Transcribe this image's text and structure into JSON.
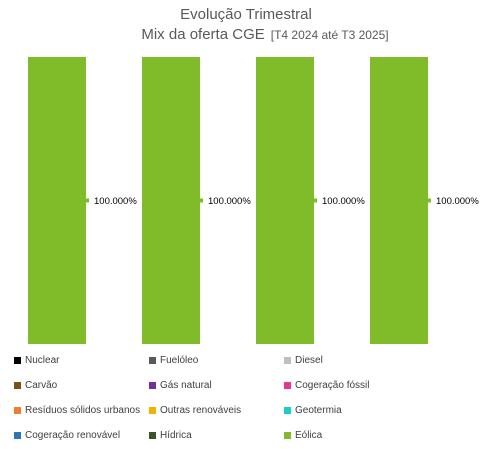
{
  "chart_data": {
    "type": "bar",
    "stacked": true,
    "title": "Evolução Trimestral",
    "subtitle": "Mix da oferta CGE",
    "subtitle_range": "[T4 2024 até T3 2025]",
    "categories": [
      "",
      "",
      "",
      ""
    ],
    "ylim": [
      0,
      100
    ],
    "grid": false,
    "legend_position": "bottom",
    "series": [
      {
        "name": "Nuclear",
        "color": "#000000",
        "values": [
          0,
          0,
          0,
          0
        ]
      },
      {
        "name": "Fuelóleo",
        "color": "#595959",
        "values": [
          0,
          0,
          0,
          0
        ]
      },
      {
        "name": "Diesel",
        "color": "#bfbfbf",
        "values": [
          0,
          0,
          0,
          0
        ]
      },
      {
        "name": "Carvão",
        "color": "#7f4e1a",
        "values": [
          0,
          0,
          0,
          0
        ]
      },
      {
        "name": "Gás natural",
        "color": "#7030a0",
        "values": [
          0,
          0,
          0,
          0
        ]
      },
      {
        "name": "Cogeração fóssil",
        "color": "#e8368f",
        "values": [
          0,
          0,
          0,
          0
        ]
      },
      {
        "name": "Resíduos sólidos urbanos",
        "color": "#ed7d31",
        "values": [
          0,
          0,
          0,
          0
        ]
      },
      {
        "name": "Outras renováveis",
        "color": "#f2b200",
        "values": [
          0,
          0,
          0,
          0
        ]
      },
      {
        "name": "Geotermia",
        "color": "#17d0c8",
        "values": [
          0,
          0,
          0,
          0
        ]
      },
      {
        "name": "Cogeração renovável",
        "color": "#2e75b6",
        "values": [
          0,
          0,
          0,
          0
        ]
      },
      {
        "name": "Hídrica",
        "color": "#375623",
        "values": [
          0,
          0,
          0,
          0
        ]
      },
      {
        "name": "Eólica",
        "color": "#80bc2a",
        "values": [
          100,
          100,
          100,
          100
        ]
      }
    ],
    "data_labels": [
      "100.000%",
      "100.000%",
      "100.000%",
      "100.000%"
    ]
  }
}
